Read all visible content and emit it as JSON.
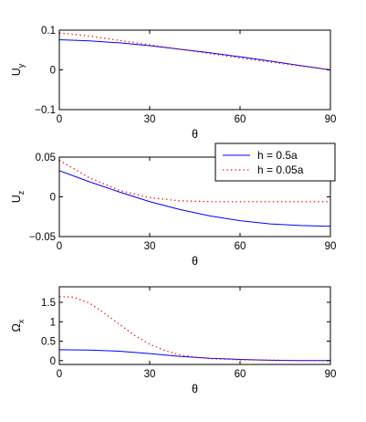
{
  "chart_data": [
    {
      "type": "line",
      "title": "",
      "xlabel": "θ",
      "ylabel": "U",
      "ylabel_sub": "y",
      "xlim": [
        0,
        90
      ],
      "ylim": [
        -0.1,
        0.1
      ],
      "xticks": [
        0,
        30,
        60,
        90
      ],
      "xtick_labels": [
        "0",
        "30",
        "60",
        "90"
      ],
      "yticks": [
        -0.1,
        0,
        0.1
      ],
      "ytick_labels": [
        "−0.1",
        "0",
        "0.1"
      ],
      "grid": false,
      "series": [
        {
          "label_ref": 0,
          "color": "#0000ff",
          "style": "solid",
          "x": [
            0,
            10,
            20,
            30,
            40,
            50,
            60,
            70,
            80,
            90
          ],
          "y": [
            0.076,
            0.073,
            0.068,
            0.061,
            0.052,
            0.043,
            0.033,
            0.022,
            0.011,
            0.0
          ]
        },
        {
          "label_ref": 1,
          "color": "#ff0000",
          "style": "dotted",
          "x": [
            0,
            10,
            20,
            30,
            40,
            50,
            60,
            70,
            80,
            90
          ],
          "y": [
            0.093,
            0.085,
            0.074,
            0.063,
            0.052,
            0.041,
            0.03,
            0.02,
            0.01,
            0.0
          ]
        }
      ]
    },
    {
      "type": "line",
      "title": "",
      "xlabel": "θ",
      "ylabel": "U",
      "ylabel_sub": "z",
      "xlim": [
        0,
        90
      ],
      "ylim": [
        -0.05,
        0.05
      ],
      "xticks": [
        0,
        30,
        60,
        90
      ],
      "xtick_labels": [
        "0",
        "30",
        "60",
        "90"
      ],
      "yticks": [
        -0.05,
        0,
        0.05
      ],
      "ytick_labels": [
        "−0.05",
        "0",
        "0.05"
      ],
      "grid": false,
      "legend": {
        "placement": "top-right",
        "entries": [
          "h = 0.5a",
          "h = 0.05a"
        ]
      },
      "series": [
        {
          "label_ref": 0,
          "color": "#0000ff",
          "style": "solid",
          "x": [
            0,
            10,
            20,
            30,
            40,
            50,
            60,
            70,
            80,
            90
          ],
          "y": [
            0.033,
            0.019,
            0.006,
            -0.006,
            -0.016,
            -0.024,
            -0.03,
            -0.034,
            -0.036,
            -0.037
          ]
        },
        {
          "label_ref": 1,
          "color": "#ff0000",
          "style": "dotted",
          "x": [
            0,
            10,
            20,
            30,
            40,
            50,
            60,
            70,
            80,
            90
          ],
          "y": [
            0.046,
            0.024,
            0.008,
            -0.001,
            -0.005,
            -0.006,
            -0.006,
            -0.006,
            -0.006,
            -0.006
          ]
        }
      ]
    },
    {
      "type": "line",
      "title": "",
      "xlabel": "θ",
      "ylabel": "Ω",
      "ylabel_sub": "x",
      "xlim": [
        0,
        90
      ],
      "ylim": [
        -0.1,
        1.9
      ],
      "xticks": [
        0,
        30,
        60,
        90
      ],
      "xtick_labels": [
        "0",
        "30",
        "60",
        "90"
      ],
      "yticks": [
        0,
        0.5,
        1,
        1.5
      ],
      "ytick_labels": [
        "0",
        "0.5",
        "1",
        "1.5"
      ],
      "grid": false,
      "series": [
        {
          "label_ref": 0,
          "color": "#0000ff",
          "style": "solid",
          "x": [
            0,
            10,
            20,
            30,
            40,
            50,
            60,
            70,
            80,
            90
          ],
          "y": [
            0.28,
            0.27,
            0.24,
            0.18,
            0.11,
            0.06,
            0.03,
            0.01,
            0.0,
            0.0
          ]
        },
        {
          "label_ref": 1,
          "color": "#ff0000",
          "style": "dotted",
          "x": [
            0,
            5,
            10,
            15,
            20,
            25,
            30,
            35,
            40,
            45,
            50,
            60,
            70,
            80,
            90
          ],
          "y": [
            1.65,
            1.63,
            1.48,
            1.22,
            0.93,
            0.65,
            0.42,
            0.26,
            0.15,
            0.09,
            0.05,
            0.02,
            0.01,
            0.0,
            0.0
          ]
        }
      ]
    }
  ]
}
